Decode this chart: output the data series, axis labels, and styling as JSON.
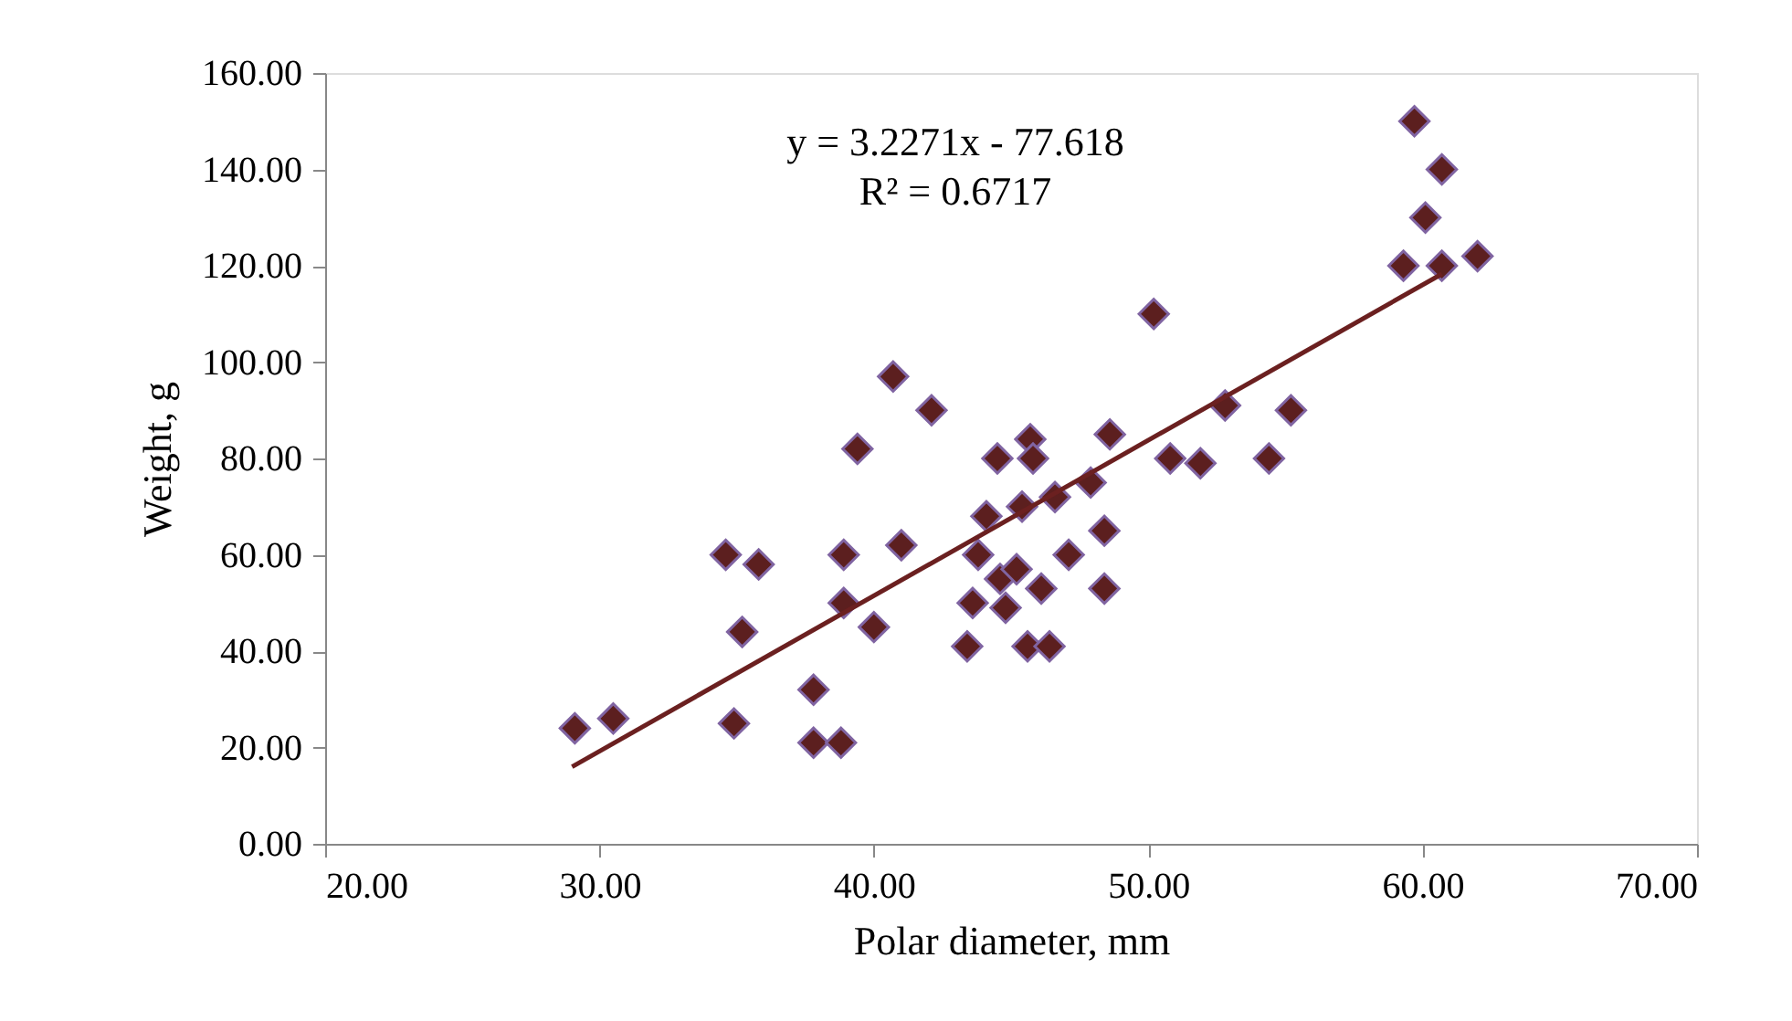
{
  "chart_data": {
    "type": "scatter",
    "xlabel": "Polar diameter, mm",
    "ylabel": "Weight, g",
    "xlim": [
      20,
      70
    ],
    "ylim": [
      0,
      160
    ],
    "xticks": [
      {
        "value": 20,
        "label": "20.00"
      },
      {
        "value": 30,
        "label": "30.00"
      },
      {
        "value": 40,
        "label": "40.00"
      },
      {
        "value": 50,
        "label": "50.00"
      },
      {
        "value": 60,
        "label": "60.00"
      },
      {
        "value": 70,
        "label": "70.00"
      }
    ],
    "yticks": [
      {
        "value": 0,
        "label": "0.00"
      },
      {
        "value": 20,
        "label": "20.00"
      },
      {
        "value": 40,
        "label": "40.00"
      },
      {
        "value": 60,
        "label": "60.00"
      },
      {
        "value": 80,
        "label": "80.00"
      },
      {
        "value": 100,
        "label": "100.00"
      },
      {
        "value": 120,
        "label": "120.00"
      },
      {
        "value": 140,
        "label": "140.00"
      },
      {
        "value": 160,
        "label": "160.00"
      }
    ],
    "grid": false,
    "marker": "diamond",
    "annotations": [
      "y = 3.2271x - 77.618",
      "R² = 0.6717"
    ],
    "series": [
      {
        "color": "#5c1f1f",
        "x": [
          29.1,
          30.5,
          34.6,
          35.8,
          34.9,
          35.2,
          37.8,
          37.8,
          38.8,
          38.9,
          38.9,
          39.4,
          40.0,
          40.7,
          41.0,
          42.1,
          43.4,
          43.6,
          43.8,
          44.1,
          44.5,
          44.6,
          44.8,
          45.2,
          45.4,
          45.6,
          45.7,
          45.8,
          46.1,
          46.4,
          46.6,
          47.1,
          47.9,
          48.4,
          48.4,
          48.6,
          50.2,
          50.8,
          51.9,
          52.8,
          54.4,
          55.2,
          59.3,
          59.7,
          60.1,
          60.7,
          60.7,
          62.0
        ],
        "values": [
          24,
          26,
          60,
          58,
          25,
          44,
          32,
          21,
          21,
          60,
          50,
          82,
          45,
          97,
          62,
          90,
          41,
          50,
          60,
          68,
          80,
          55,
          49,
          57,
          70,
          41,
          84,
          80,
          53,
          41,
          72,
          60,
          75,
          65,
          53,
          85,
          110,
          80,
          79,
          91,
          80,
          90,
          120,
          150,
          130,
          140,
          120,
          122
        ]
      },
      {
        "type": "line",
        "color": "#6b2020",
        "line_style": "solid",
        "marker": "none",
        "x": [
          29.0,
          60.7
        ],
        "values": [
          16.0,
          118.3
        ]
      }
    ]
  }
}
